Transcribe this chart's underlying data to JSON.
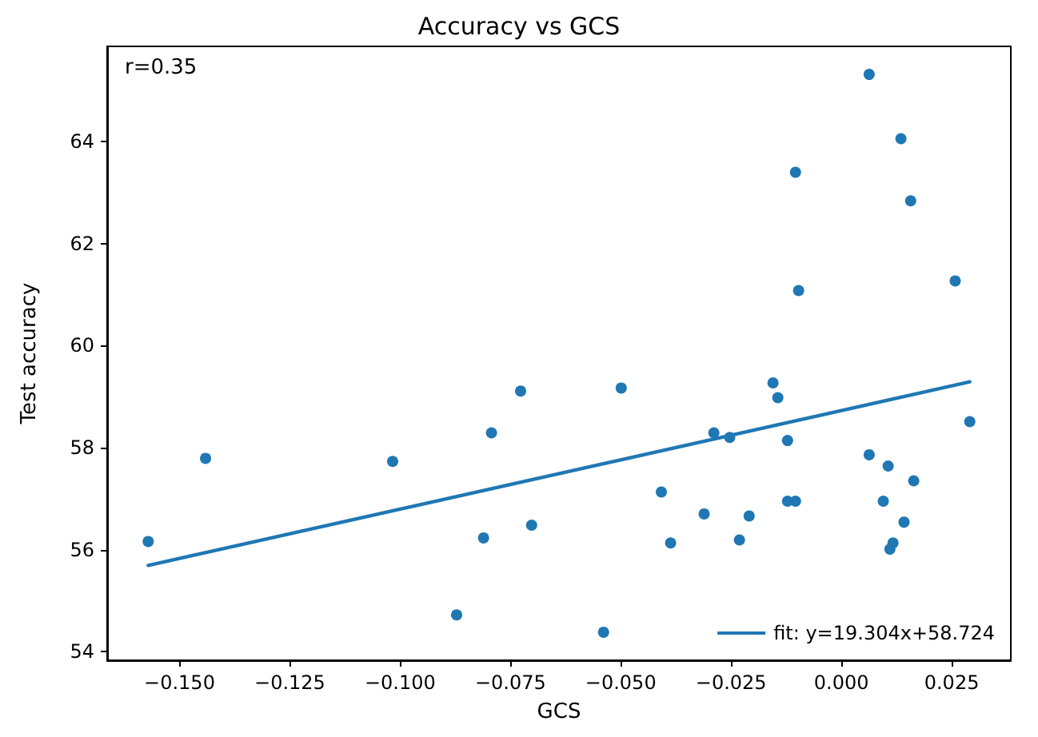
{
  "chart_data": {
    "type": "scatter",
    "title": "Accuracy vs GCS",
    "xlabel": "GCS",
    "ylabel": "Test accuracy",
    "annotations": [
      "r=0.35"
    ],
    "series": [
      {
        "color": "#1f77b4",
        "marker": "circle",
        "x": [
          -0.1571,
          -0.1441,
          -0.1017,
          -0.0872,
          -0.0811,
          -0.0793,
          -0.0727,
          -0.0702,
          -0.0539,
          -0.0499,
          -0.0408,
          -0.0387,
          -0.0311,
          -0.0289,
          -0.0253,
          -0.0231,
          -0.0209,
          -0.0155,
          -0.0144,
          -0.0122,
          -0.0122,
          -0.0104,
          -0.0104,
          -0.0097,
          0.0063,
          0.0063,
          0.0095,
          0.0106,
          0.011,
          0.0117,
          0.0142,
          0.0135,
          0.0157,
          0.0164,
          0.0258,
          0.0291
        ],
        "values": [
          56.16,
          57.79,
          57.73,
          54.72,
          56.23,
          58.29,
          59.11,
          56.48,
          54.38,
          59.17,
          57.13,
          56.13,
          56.7,
          58.29,
          58.2,
          56.19,
          56.66,
          59.27,
          58.98,
          58.14,
          56.95,
          56.95,
          63.4,
          61.08,
          65.32,
          57.86,
          56.95,
          57.64,
          56.01,
          56.13,
          56.54,
          64.06,
          62.84,
          57.35,
          61.27,
          58.51
        ]
      },
      {
        "type": "line",
        "name": "fit: y=19.304x+58.724",
        "color": "#1f77b4",
        "line_style": "solid",
        "marker": "none",
        "x": [
          -0.1571,
          0.0291
        ],
        "values": [
          55.69,
          59.29
        ]
      }
    ],
    "xlim": [
      -0.1664,
      0.0384
    ],
    "ylim": [
      53.83,
      65.87
    ],
    "xticks": [
      {
        "value": -0.15,
        "label": "−0.150"
      },
      {
        "value": -0.125,
        "label": "−0.125"
      },
      {
        "value": -0.1,
        "label": "−0.100"
      },
      {
        "value": -0.075,
        "label": "−0.075"
      },
      {
        "value": -0.05,
        "label": "−0.050"
      },
      {
        "value": -0.025,
        "label": "−0.025"
      },
      {
        "value": 0,
        "label": "0.000"
      },
      {
        "value": 0.025,
        "label": "0.025"
      }
    ],
    "yticks": [
      54,
      56,
      58,
      60,
      62,
      64
    ],
    "grid": false,
    "legend": "bottom right"
  }
}
